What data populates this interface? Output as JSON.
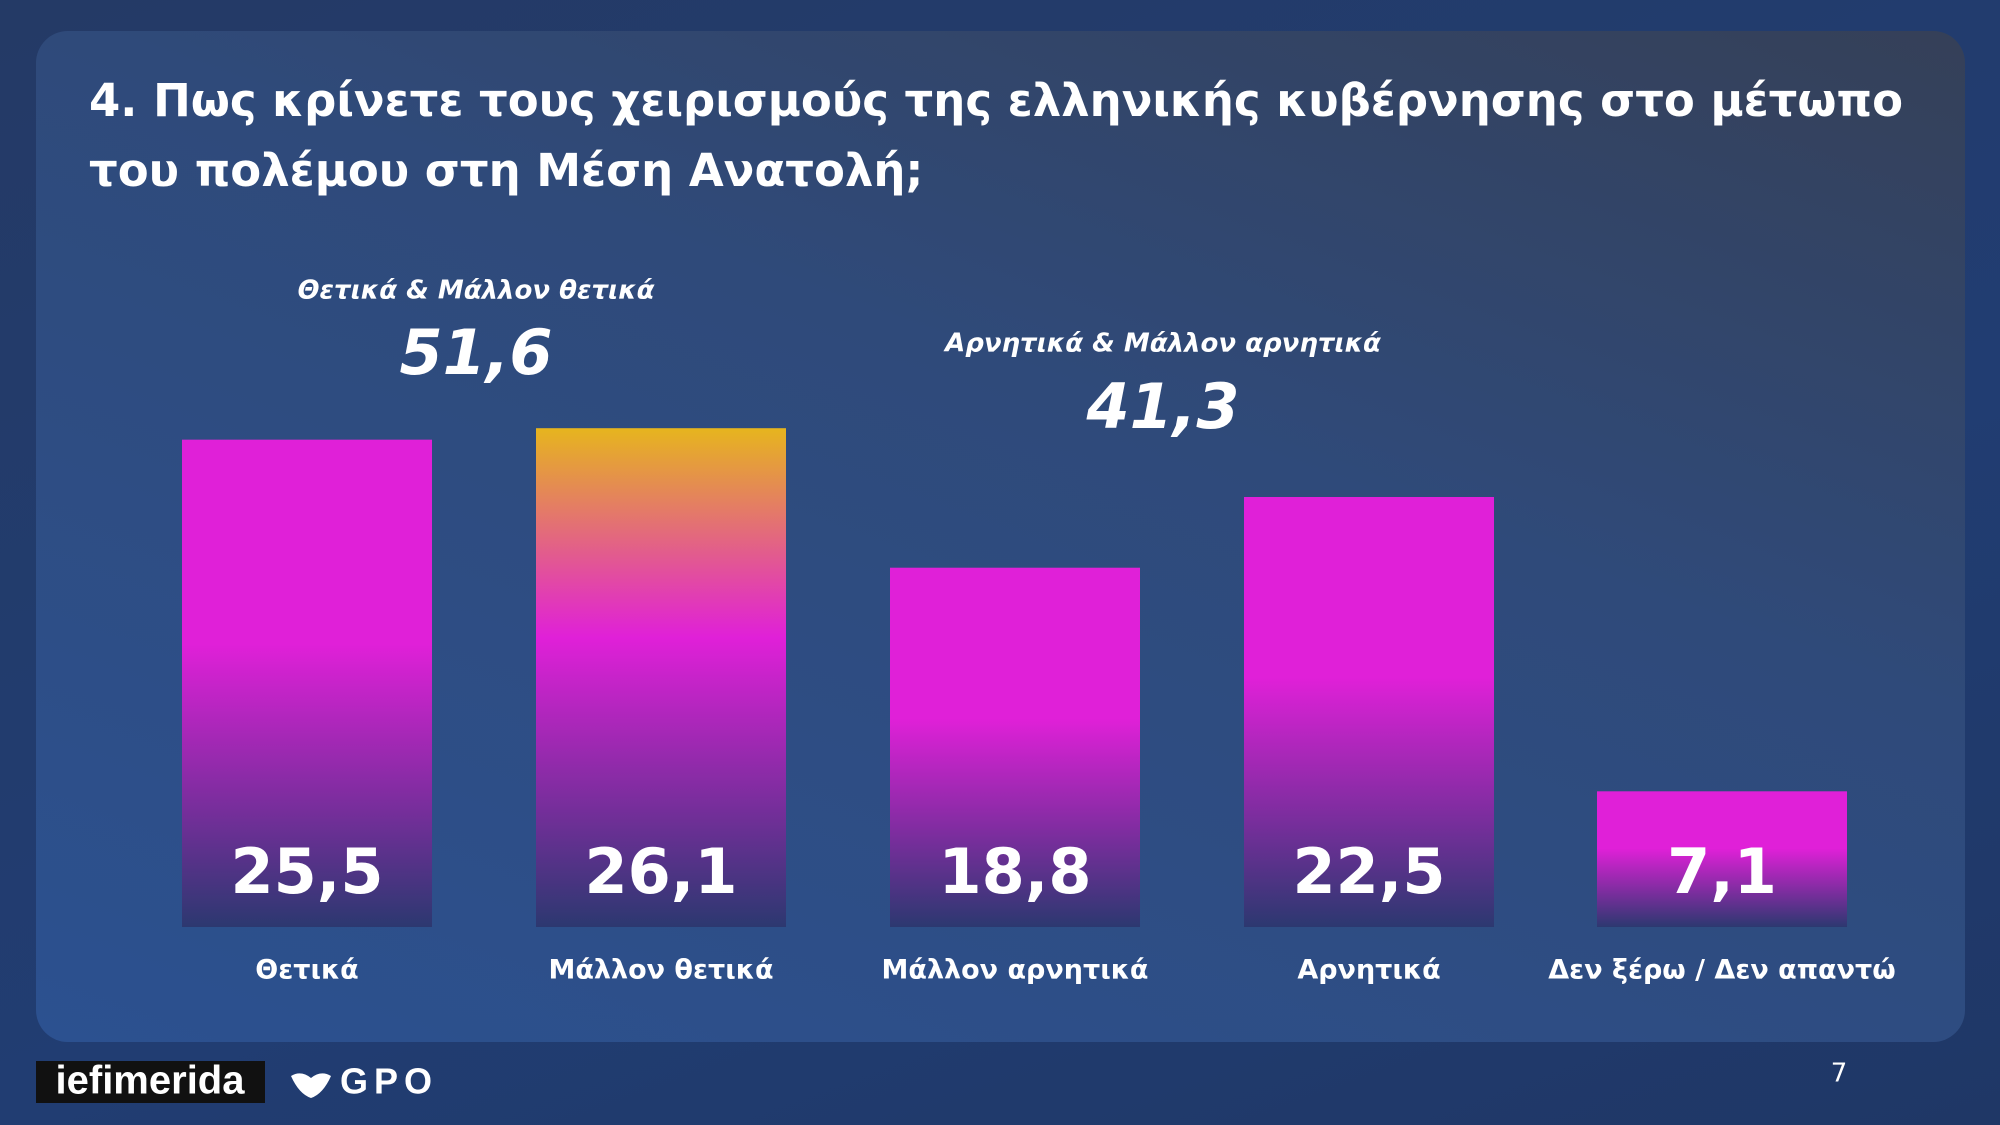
{
  "chart_data": {
    "type": "bar",
    "title": "4. Πως κρίνετε τους χειρισμούς της ελληνικής κυβέρνησης στο μέτωπο του πολέμου στη Μέση Ανατολή;",
    "categories": [
      "Θετικά",
      "Μάλλον θετικά",
      "Μάλλον αρνητικά",
      "Αρνητικά",
      "Δεν ξέρω / Δεν απαντώ"
    ],
    "values": [
      25.5,
      26.1,
      18.8,
      22.5,
      7.1
    ],
    "value_labels": [
      "25,5",
      "26,1",
      "18,8",
      "22,5",
      "7,1"
    ],
    "color": "#e020d8",
    "colors": [
      "#e020d8",
      "#e6b51e",
      "#e020d8",
      "#e020d8",
      "#e020d8"
    ],
    "ylim": [
      0,
      27
    ],
    "annotations": [
      {
        "text": "Θετικά & Μάλλον θετικά",
        "value": 51.6,
        "value_label": "51,6"
      },
      {
        "text": "Αρνητικά & Μάλλον αρνητικά",
        "value": 41.3,
        "value_label": "41,3"
      }
    ]
  },
  "footer": {
    "logo": "iefimerida",
    "partner": "GPO",
    "page_number": "7"
  }
}
